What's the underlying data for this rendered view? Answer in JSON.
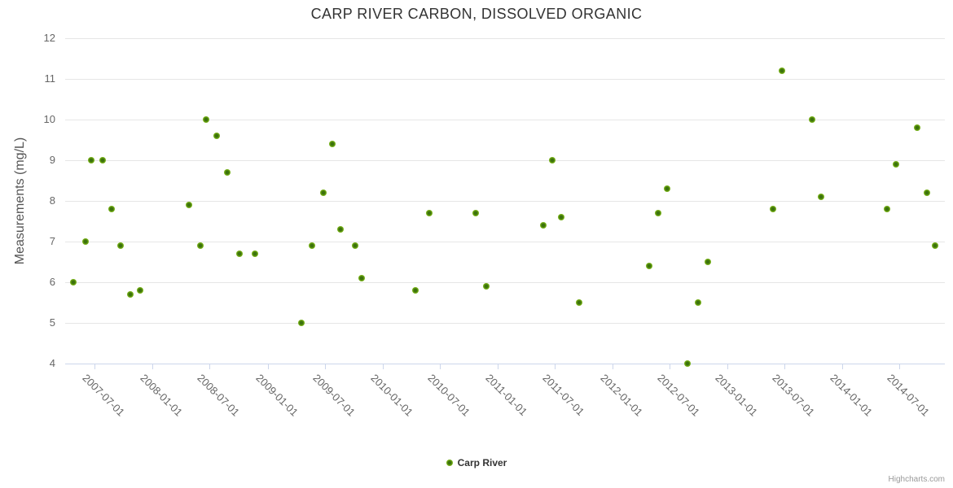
{
  "chart_data": {
    "type": "scatter",
    "title": "CARP RIVER CARBON, DISSOLVED ORGANIC",
    "xlabel": "",
    "ylabel": "Measurements (mg/L)",
    "ylim": [
      4,
      12
    ],
    "y_tick_step": 1,
    "xlim": [
      "2007-03-30",
      "2014-11-22"
    ],
    "x_ticks": [
      "2007-07-01",
      "2008-01-01",
      "2008-07-01",
      "2009-01-01",
      "2009-07-01",
      "2010-01-01",
      "2010-07-01",
      "2011-01-01",
      "2011-07-01",
      "2012-01-01",
      "2012-07-01",
      "2013-01-01",
      "2013-07-01",
      "2014-01-01",
      "2014-07-01"
    ],
    "grid": "horizontal",
    "legend_position": "bottom-center",
    "series": [
      {
        "name": "Carp River",
        "color": "#7cb71e",
        "marker_center_color": "#3b720d",
        "points": [
          [
            "2007-04-24",
            6.0
          ],
          [
            "2007-06-03",
            7.0
          ],
          [
            "2007-06-22",
            9.0
          ],
          [
            "2007-07-26",
            9.0
          ],
          [
            "2007-08-24",
            7.8
          ],
          [
            "2007-09-22",
            6.9
          ],
          [
            "2007-10-24",
            5.7
          ],
          [
            "2007-11-23",
            5.8
          ],
          [
            "2008-04-26",
            7.9
          ],
          [
            "2008-06-01",
            6.9
          ],
          [
            "2008-06-19",
            10.0
          ],
          [
            "2008-07-23",
            9.6
          ],
          [
            "2008-08-25",
            8.7
          ],
          [
            "2008-10-04",
            6.7
          ],
          [
            "2008-11-22",
            6.7
          ],
          [
            "2009-04-19",
            5.0
          ],
          [
            "2009-05-21",
            6.9
          ],
          [
            "2009-06-27",
            8.2
          ],
          [
            "2009-07-25",
            9.4
          ],
          [
            "2009-08-20",
            7.3
          ],
          [
            "2009-10-06",
            6.9
          ],
          [
            "2009-10-26",
            6.1
          ],
          [
            "2010-04-16",
            5.8
          ],
          [
            "2010-05-30",
            7.7
          ],
          [
            "2010-10-23",
            7.7
          ],
          [
            "2010-11-27",
            5.9
          ],
          [
            "2011-05-26",
            7.4
          ],
          [
            "2011-06-25",
            9.0
          ],
          [
            "2011-07-22",
            7.6
          ],
          [
            "2011-09-18",
            5.5
          ],
          [
            "2012-04-27",
            6.4
          ],
          [
            "2012-05-26",
            7.7
          ],
          [
            "2012-06-23",
            8.3
          ],
          [
            "2012-08-26",
            4.0
          ],
          [
            "2012-09-30",
            5.5
          ],
          [
            "2012-10-29",
            6.5
          ],
          [
            "2013-05-25",
            7.8
          ],
          [
            "2013-06-22",
            11.2
          ],
          [
            "2013-09-27",
            10.0
          ],
          [
            "2013-10-26",
            8.1
          ],
          [
            "2014-05-23",
            7.8
          ],
          [
            "2014-06-19",
            8.9
          ],
          [
            "2014-08-26",
            9.8
          ],
          [
            "2014-09-27",
            8.2
          ],
          [
            "2014-10-23",
            6.9
          ]
        ]
      }
    ]
  },
  "credits": "Highcharts.com",
  "colors": {
    "grid": "#e6e6e6",
    "axis_line": "#ccd6eb",
    "title_text": "#333333",
    "axis_text": "#666666",
    "legend_text": "#333333",
    "credits_text": "#999999"
  }
}
